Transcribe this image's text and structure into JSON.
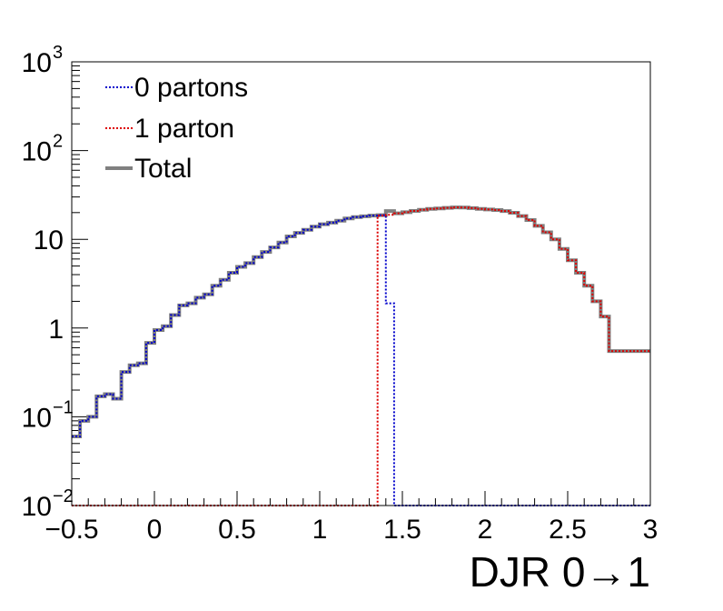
{
  "chart_data": {
    "type": "line",
    "xlabel": "DJR 0→1",
    "ylabel": "",
    "title": "",
    "xlim": [
      -0.5,
      3.0
    ],
    "ylim": [
      0.01,
      1000
    ],
    "y_scale": "log",
    "grid": false,
    "legend_position": "top-left",
    "x_tick_labels": [
      "−0.5",
      "0",
      "0.5",
      "1",
      "1.5",
      "2",
      "2.5",
      "3"
    ],
    "x_ticks": [
      -0.5,
      0,
      0.5,
      1,
      1.5,
      2,
      2.5,
      3
    ],
    "y_tick_labels": [
      {
        "value": 0.01,
        "base": "10",
        "exp": "−2"
      },
      {
        "value": 0.1,
        "base": "10",
        "exp": "−1"
      },
      {
        "value": 1,
        "base": "1",
        "exp": ""
      },
      {
        "value": 10,
        "base": "10",
        "exp": ""
      },
      {
        "value": 100,
        "base": "10",
        "exp": "2"
      },
      {
        "value": 1000,
        "base": "10",
        "exp": "3"
      }
    ],
    "bin_edges_start": -0.5,
    "bin_width": 0.05,
    "series": [
      {
        "name": "0 partons",
        "color": "#0000cc",
        "style": "dotted",
        "values": [
          0.06,
          0.09,
          0.1,
          0.17,
          0.18,
          0.16,
          0.32,
          0.38,
          0.4,
          0.68,
          0.95,
          1.05,
          1.4,
          1.8,
          1.9,
          2.2,
          2.4,
          3.0,
          3.5,
          4.2,
          4.9,
          5.4,
          6.3,
          7.2,
          8.1,
          9.2,
          10.8,
          11.8,
          12.8,
          13.9,
          14.8,
          15.4,
          16.2,
          17.2,
          17.8,
          18.2,
          18.5,
          18.7,
          1.9,
          0.01,
          0.01,
          0.01,
          0.01,
          0.01,
          0.01,
          0.01,
          0.01,
          0.01,
          0.01,
          0.01,
          0.01,
          0.01,
          0.01,
          0.01,
          0.01,
          0.01,
          0.01,
          0.01,
          0.01,
          0.01,
          0.01,
          0.01,
          0.01,
          0.01,
          0.01,
          0.01,
          0.01,
          0.01,
          0.01,
          0.01
        ]
      },
      {
        "name": "1 parton",
        "color": "#dd0000",
        "style": "dotted",
        "values": [
          0.01,
          0.01,
          0.01,
          0.01,
          0.01,
          0.01,
          0.01,
          0.01,
          0.01,
          0.01,
          0.01,
          0.01,
          0.01,
          0.01,
          0.01,
          0.01,
          0.01,
          0.01,
          0.01,
          0.01,
          0.01,
          0.01,
          0.01,
          0.01,
          0.01,
          0.01,
          0.01,
          0.01,
          0.01,
          0.01,
          0.01,
          0.01,
          0.01,
          0.01,
          0.01,
          0.01,
          0.01,
          18.5,
          18.9,
          19.6,
          20.2,
          20.9,
          21.5,
          22.0,
          22.3,
          22.6,
          22.9,
          22.8,
          22.5,
          22.0,
          21.7,
          21.4,
          20.8,
          19.9,
          18.3,
          16.5,
          14.2,
          12.0,
          10.0,
          7.8,
          5.8,
          4.2,
          3.0,
          2.0,
          1.35,
          0.55,
          0.55,
          0.55,
          0.55,
          0.55
        ]
      },
      {
        "name": "Total",
        "color": "#808080",
        "style": "solid",
        "values": [
          0.06,
          0.09,
          0.1,
          0.17,
          0.18,
          0.16,
          0.32,
          0.38,
          0.4,
          0.68,
          0.95,
          1.05,
          1.4,
          1.8,
          1.9,
          2.2,
          2.4,
          3.0,
          3.5,
          4.2,
          4.9,
          5.4,
          6.3,
          7.2,
          8.1,
          9.2,
          10.8,
          11.8,
          12.8,
          13.9,
          14.8,
          15.4,
          16.2,
          17.2,
          17.8,
          18.2,
          18.5,
          18.7,
          20.8,
          19.6,
          20.2,
          20.9,
          21.5,
          22.0,
          22.3,
          22.6,
          22.9,
          22.8,
          22.5,
          22.0,
          21.7,
          21.4,
          20.8,
          19.9,
          18.3,
          16.5,
          14.2,
          12.0,
          10.0,
          7.8,
          5.8,
          4.2,
          3.0,
          2.0,
          1.35,
          0.55,
          0.55,
          0.55,
          0.55,
          0.55
        ]
      }
    ]
  }
}
